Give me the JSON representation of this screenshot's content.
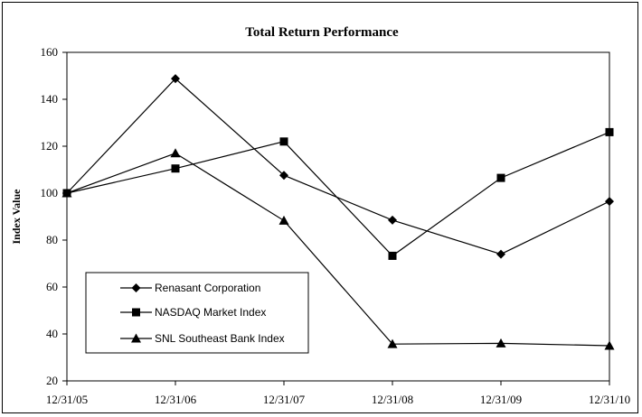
{
  "chart_data": {
    "type": "line",
    "title": "Total Return Performance",
    "xlabel": "",
    "ylabel": "Index Value",
    "categories": [
      "12/31/05",
      "12/31/06",
      "12/31/07",
      "12/31/08",
      "12/31/09",
      "12/31/10"
    ],
    "ylim": [
      20,
      160
    ],
    "yticks": [
      20,
      40,
      60,
      80,
      100,
      120,
      140,
      160
    ],
    "grid": false,
    "legend_position": "lower-left",
    "series": [
      {
        "name": "Renasant Corporation",
        "marker": "diamond",
        "values": [
          100,
          148.8,
          107.6,
          88.5,
          74,
          96.5
        ]
      },
      {
        "name": "NASDAQ Market Index",
        "marker": "square",
        "values": [
          100,
          110.5,
          122,
          73.3,
          106.5,
          126
        ]
      },
      {
        "name": "SNL Southeast Bank Index",
        "marker": "triangle",
        "values": [
          100,
          117,
          88.3,
          35.7,
          36,
          35
        ]
      }
    ]
  }
}
